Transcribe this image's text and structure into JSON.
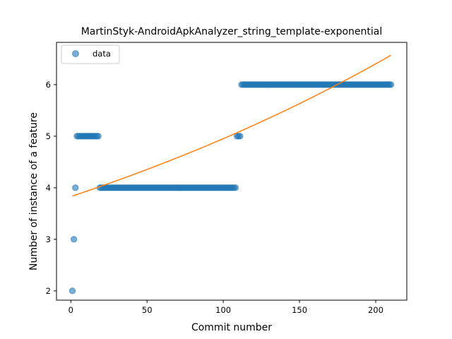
{
  "chart_data": {
    "type": "scatter",
    "title": "MartinStyk-AndroidApkAnalyzer_string_template-exponential",
    "xlabel": "Commit number",
    "ylabel": "Number of instance of a feature",
    "xlim": [
      -9.4,
      220.4
    ],
    "ylim": [
      1.82,
      6.82
    ],
    "x_ticks": [
      0,
      50,
      100,
      150,
      200
    ],
    "y_ticks": [
      2,
      3,
      4,
      5,
      6
    ],
    "grid": false,
    "legend": {
      "position": "upper-left",
      "entries": [
        "data"
      ]
    },
    "colors": {
      "data": "#1f77b4",
      "fit": "#ff7f0e"
    },
    "series": [
      {
        "name": "data",
        "kind": "scatter",
        "segments": [
          {
            "x_start": 1,
            "x_end": 1,
            "y": 2
          },
          {
            "x_start": 2,
            "x_end": 2,
            "y": 3
          },
          {
            "x_start": 3,
            "x_end": 3,
            "y": 4
          },
          {
            "x_start": 4,
            "x_end": 18,
            "y": 5
          },
          {
            "x_start": 19,
            "x_end": 108,
            "y": 4
          },
          {
            "x_start": 109,
            "x_end": 111,
            "y": 5
          },
          {
            "x_start": 112,
            "x_end": 210,
            "y": 6
          }
        ]
      },
      {
        "name": "",
        "kind": "line",
        "model": "exponential",
        "a": 3.83,
        "b": 0.00257,
        "x_range": [
          1,
          210
        ]
      }
    ]
  }
}
